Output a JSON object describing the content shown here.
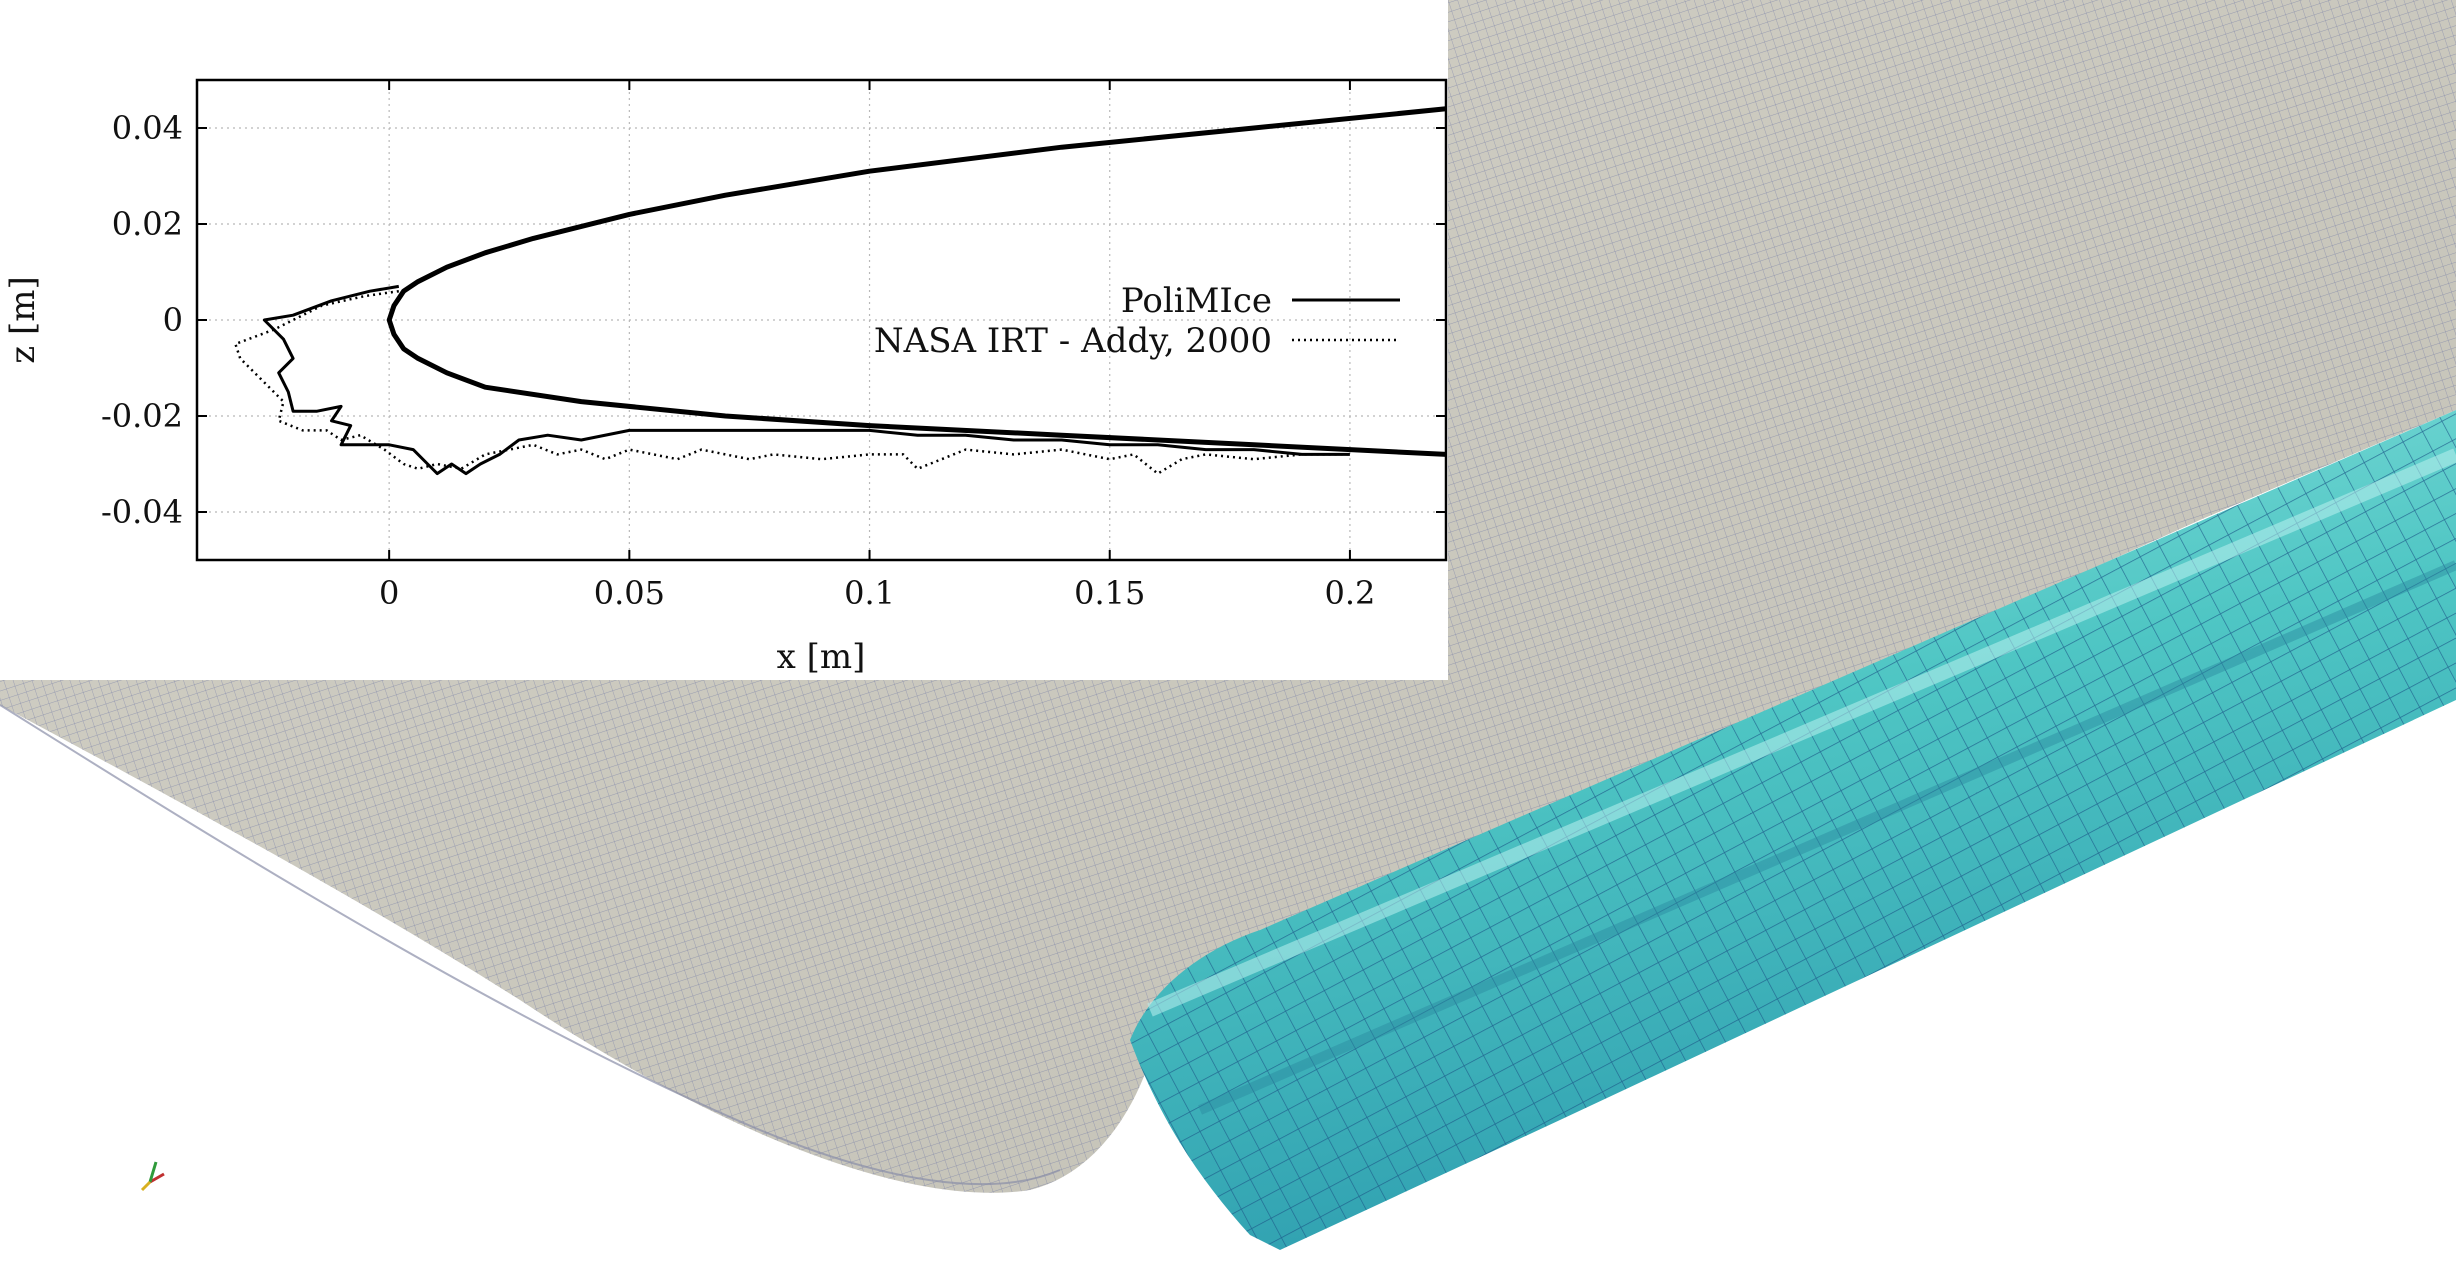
{
  "colors": {
    "wing_surface": "#c9c7bc",
    "mesh_line": "#4f5a9a",
    "ice_fill": "#5fd0cd",
    "ice_mesh": "#1d5a8a",
    "curve": "#000000",
    "grid": "#b8b8b8"
  },
  "scene": {
    "axes_icon": "axes-triad-icon"
  },
  "chart_data": {
    "type": "line",
    "title": "",
    "xlabel": "x [m]",
    "ylabel": "z [m]",
    "xlim": [
      -0.04,
      0.22
    ],
    "ylim": [
      -0.05,
      0.05
    ],
    "grid": true,
    "legend_position": "right",
    "xticks": [
      0,
      0.05,
      0.1,
      0.15,
      0.2
    ],
    "xtick_labels": [
      "0",
      "0.05",
      "0.1",
      "0.15",
      "0.2"
    ],
    "yticks": [
      0.04,
      0.02,
      0,
      -0.02,
      -0.04
    ],
    "ytick_labels": [
      "0.04",
      "0.02",
      "0",
      "-0.02",
      "-0.04"
    ],
    "airfoil": {
      "x": [
        0.22,
        0.18,
        0.14,
        0.1,
        0.07,
        0.05,
        0.03,
        0.02,
        0.012,
        0.006,
        0.003,
        0.001,
        0.0,
        0.001,
        0.003,
        0.006,
        0.012,
        0.02,
        0.04,
        0.07,
        0.1,
        0.14,
        0.18,
        0.22
      ],
      "z": [
        0.044,
        0.04,
        0.036,
        0.031,
        0.026,
        0.022,
        0.017,
        0.014,
        0.011,
        0.008,
        0.006,
        0.003,
        0.0,
        -0.003,
        -0.006,
        -0.008,
        -0.011,
        -0.014,
        -0.017,
        -0.02,
        -0.022,
        -0.024,
        -0.026,
        -0.028
      ]
    },
    "series": [
      {
        "name": "PoliMIce",
        "style": "solid",
        "x": [
          0.002,
          -0.004,
          -0.012,
          -0.02,
          -0.026,
          -0.022,
          -0.02,
          -0.023,
          -0.021,
          -0.02,
          -0.015,
          -0.01,
          -0.012,
          -0.008,
          -0.01,
          -0.005,
          0.0,
          0.005,
          0.008,
          0.01,
          0.013,
          0.016,
          0.019,
          0.023,
          0.027,
          0.033,
          0.04,
          0.05,
          0.06,
          0.07,
          0.08,
          0.09,
          0.1,
          0.11,
          0.12,
          0.13,
          0.14,
          0.15,
          0.16,
          0.17,
          0.18,
          0.19,
          0.2
        ],
        "z": [
          0.007,
          0.006,
          0.004,
          0.001,
          0.0,
          -0.004,
          -0.008,
          -0.011,
          -0.015,
          -0.019,
          -0.019,
          -0.018,
          -0.021,
          -0.022,
          -0.026,
          -0.026,
          -0.026,
          -0.027,
          -0.03,
          -0.032,
          -0.03,
          -0.032,
          -0.03,
          -0.028,
          -0.025,
          -0.024,
          -0.025,
          -0.023,
          -0.023,
          -0.023,
          -0.023,
          -0.023,
          -0.023,
          -0.024,
          -0.024,
          -0.025,
          -0.025,
          -0.026,
          -0.026,
          -0.027,
          -0.027,
          -0.028,
          -0.028
        ]
      },
      {
        "name": "NASA IRT - Addy, 2000",
        "style": "dotted",
        "x": [
          0.002,
          -0.005,
          -0.014,
          -0.024,
          -0.032,
          -0.031,
          -0.028,
          -0.025,
          -0.022,
          -0.023,
          -0.018,
          -0.013,
          -0.01,
          -0.006,
          -0.001,
          0.003,
          0.006,
          0.01,
          0.015,
          0.02,
          0.025,
          0.03,
          0.035,
          0.04,
          0.045,
          0.05,
          0.055,
          0.06,
          0.065,
          0.07,
          0.075,
          0.08,
          0.09,
          0.1,
          0.107,
          0.11,
          0.12,
          0.13,
          0.14,
          0.15,
          0.155,
          0.16,
          0.165,
          0.17,
          0.18,
          0.19,
          0.2
        ],
        "z": [
          0.006,
          0.005,
          0.003,
          -0.002,
          -0.005,
          -0.008,
          -0.011,
          -0.014,
          -0.017,
          -0.021,
          -0.023,
          -0.023,
          -0.025,
          -0.024,
          -0.027,
          -0.03,
          -0.031,
          -0.03,
          -0.031,
          -0.028,
          -0.027,
          -0.026,
          -0.028,
          -0.027,
          -0.029,
          -0.027,
          -0.028,
          -0.029,
          -0.027,
          -0.028,
          -0.029,
          -0.028,
          -0.029,
          -0.028,
          -0.028,
          -0.031,
          -0.027,
          -0.028,
          -0.027,
          -0.029,
          -0.028,
          -0.032,
          -0.029,
          -0.028,
          -0.029,
          -0.028,
          -0.028
        ]
      }
    ]
  }
}
